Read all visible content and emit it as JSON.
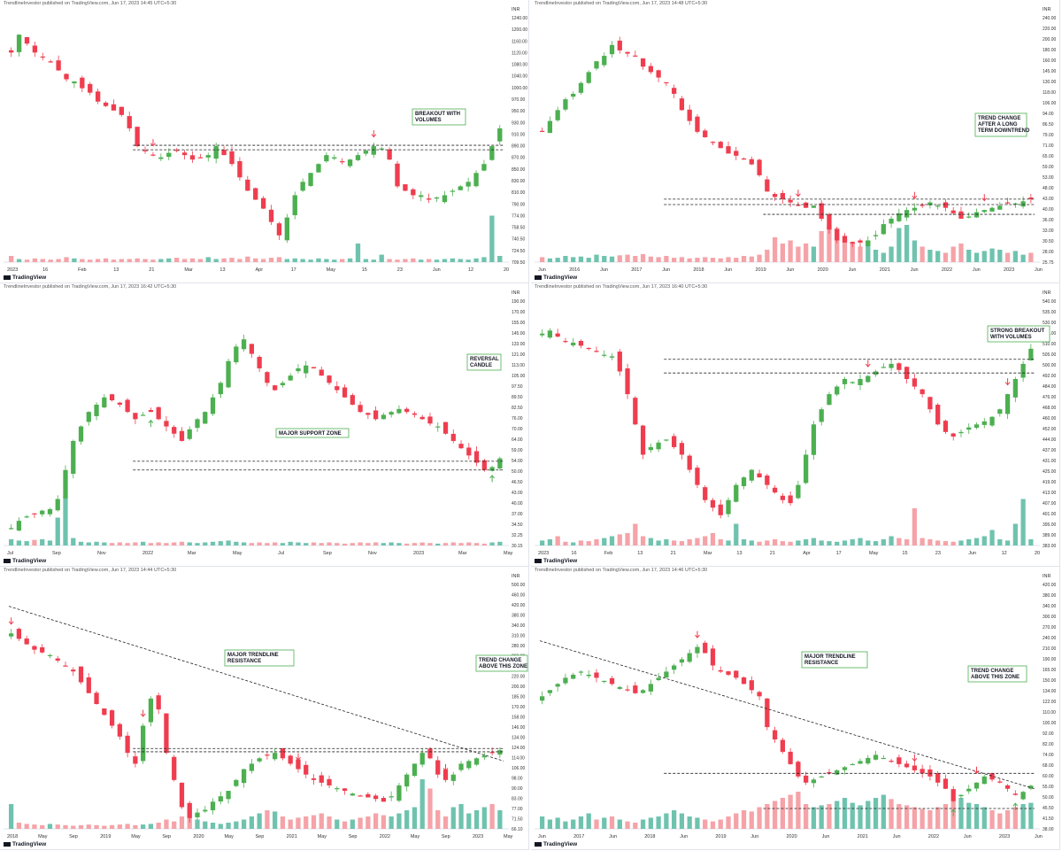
{
  "attribution": "TradingView",
  "colors": {
    "up": "#4caf50",
    "down": "#ef3d4f",
    "vol_up": "#6fc3ae",
    "vol_down": "#f5a3a8",
    "box_border": "#4caf50",
    "text": "#131722"
  },
  "chart_data": [
    {
      "type": "candlestick",
      "published": "TrendlineInvestor published on TradingView.com, Jun 17, 2023 14:45 UTC+5:30",
      "currency": "INR",
      "y_ticks": [
        "1240.00",
        "1200.00",
        "1160.00",
        "1120.00",
        "1080.00",
        "1040.00",
        "1000.00",
        "970.00",
        "950.00",
        "930.00",
        "910.00",
        "890.00",
        "870.00",
        "850.00",
        "830.00",
        "810.00",
        "790.00",
        "774.00",
        "758.50",
        "740.50",
        "724.50",
        "709.50"
      ],
      "x_ticks": [
        "2023",
        "16",
        "Feb",
        "13",
        "21",
        "Mar",
        "13",
        "Apr",
        "17",
        "May",
        "15",
        "23",
        "Jun",
        "12",
        "20"
      ],
      "ylim": [
        700,
        1260
      ],
      "trend": [
        1170,
        1210,
        1190,
        1170,
        1160,
        1150,
        1130,
        1110,
        1105,
        1090,
        1080,
        1060,
        1050,
        1040,
        1030,
        1000,
        960,
        950,
        940,
        935,
        945,
        950,
        940,
        930,
        935,
        940,
        960,
        940,
        920,
        890,
        860,
        840,
        820,
        790,
        760,
        800,
        850,
        880,
        900,
        920,
        940,
        935,
        925,
        930,
        940,
        950,
        960,
        955,
        930,
        870,
        860,
        850,
        850,
        840,
        845,
        850,
        860,
        870,
        880,
        900,
        920,
        960,
        1000
      ],
      "volume": [
        0.1,
        0.05,
        0.04,
        0.06,
        0.05,
        0.04,
        0.05,
        0.08,
        0.06,
        0.05,
        0.04,
        0.05,
        0.06,
        0.04,
        0.05,
        0.05,
        0.06,
        0.05,
        0.04,
        0.05,
        0.06,
        0.07,
        0.05,
        0.06,
        0.05,
        0.08,
        0.05,
        0.06,
        0.07,
        0.05,
        0.09,
        0.06,
        0.05,
        0.07,
        0.08,
        0.05,
        0.06,
        0.05,
        0.04,
        0.06,
        0.05,
        0.04,
        0.05,
        0.06,
        0.3,
        0.05,
        0.04,
        0.12,
        0.05,
        0.04,
        0.05,
        0.06,
        0.04,
        0.05,
        0.04,
        0.05,
        0.06,
        0.05,
        0.04,
        0.06,
        0.08,
        0.75,
        0.1
      ],
      "resistance": [
        962,
        952
      ],
      "annotations": [
        {
          "text": "BREAKOUT WITH VOLUMES"
        }
      ],
      "arrows_down": [
        18,
        46
      ],
      "arrows_up": []
    },
    {
      "type": "candlestick",
      "published": "TrendlineInvestor published on TradingView.com, Jun 17, 2023 14:48 UTC+5:30",
      "currency": "INR",
      "y_ticks": [
        "240.00",
        "220.00",
        "200.00",
        "180.00",
        "160.00",
        "145.00",
        "130.00",
        "118.00",
        "106.00",
        "94.00",
        "86.50",
        "79.00",
        "71.00",
        "65.00",
        "59.00",
        "53.00",
        "48.00",
        "43.00",
        "40.00",
        "36.00",
        "33.00",
        "30.50",
        "28.00",
        "25.75"
      ],
      "x_ticks": [
        "Jun",
        "2016",
        "Jun",
        "2017",
        "Jun",
        "2018",
        "Jun",
        "2019",
        "Jun",
        "2020",
        "Jun",
        "2021",
        "Jun",
        "2022",
        "Jun",
        "2023",
        "Jun"
      ],
      "ylim": [
        20,
        250
      ],
      "trend": [
        140,
        150,
        160,
        170,
        175,
        185,
        195,
        205,
        210,
        220,
        215,
        212,
        210,
        200,
        195,
        190,
        185,
        175,
        160,
        150,
        140,
        135,
        130,
        125,
        120,
        118,
        115,
        110,
        100,
        85,
        80,
        78,
        75,
        72,
        70,
        72,
        60,
        50,
        40,
        38,
        37,
        38,
        40,
        45,
        55,
        60,
        65,
        68,
        70,
        72,
        75,
        72,
        70,
        65,
        60,
        62,
        66,
        68,
        70,
        72,
        75,
        74,
        76,
        78
      ],
      "volume": [
        0.08,
        0.06,
        0.07,
        0.1,
        0.08,
        0.09,
        0.07,
        0.12,
        0.1,
        0.09,
        0.11,
        0.12,
        0.1,
        0.13,
        0.09,
        0.08,
        0.1,
        0.07,
        0.08,
        0.06,
        0.07,
        0.08,
        0.07,
        0.06,
        0.08,
        0.07,
        0.1,
        0.09,
        0.12,
        0.2,
        0.4,
        0.3,
        0.35,
        0.25,
        0.3,
        0.25,
        0.5,
        0.6,
        0.55,
        0.4,
        0.3,
        0.25,
        0.35,
        0.2,
        0.15,
        0.25,
        0.55,
        0.6,
        0.35,
        0.25,
        0.2,
        0.18,
        0.15,
        0.25,
        0.3,
        0.2,
        0.15,
        0.18,
        0.22,
        0.2,
        0.15,
        0.18,
        0.12,
        0.15
      ],
      "resistance": [
        78,
        73
      ],
      "support": [
        64
      ],
      "annotations": [
        {
          "text": "TREND CHANGE AFTER A LONG TERM DOWNTREND"
        }
      ],
      "arrows_down": [
        33,
        48,
        57
      ],
      "arrows_up": []
    },
    {
      "type": "candlestick",
      "published": "TrendlineInvestor published on TradingView.com, Jun 17, 2023 16:42 UTC+5:30",
      "currency": "INR",
      "y_ticks": [
        "190.00",
        "170.00",
        "155.00",
        "145.00",
        "133.00",
        "121.00",
        "113.00",
        "105.00",
        "97.50",
        "89.50",
        "82.50",
        "76.00",
        "70.00",
        "64.00",
        "59.00",
        "54.00",
        "50.00",
        "46.50",
        "43.00",
        "40.00",
        "37.00",
        "34.50",
        "32.25",
        "30.15"
      ],
      "x_ticks": [
        "Jul",
        "Sep",
        "Nov",
        "2022",
        "Mar",
        "May",
        "Jul",
        "Sep",
        "Nov",
        "2023",
        "Mar",
        "May"
      ],
      "ylim": [
        28,
        200
      ],
      "trend": [
        40,
        45,
        48,
        50,
        52,
        53,
        60,
        80,
        100,
        110,
        120,
        125,
        130,
        128,
        125,
        120,
        115,
        118,
        120,
        115,
        110,
        105,
        100,
        108,
        115,
        120,
        130,
        140,
        155,
        165,
        170,
        160,
        150,
        140,
        135,
        140,
        145,
        150,
        152,
        150,
        145,
        140,
        135,
        130,
        125,
        120,
        118,
        115,
        118,
        120,
        122,
        120,
        118,
        115,
        112,
        110,
        105,
        100,
        95,
        90,
        85,
        80,
        82,
        88
      ],
      "volume": [
        0.1,
        0.08,
        0.07,
        0.09,
        0.1,
        0.08,
        0.45,
        0.8,
        0.12,
        0.06,
        0.05,
        0.06,
        0.05,
        0.04,
        0.05,
        0.04,
        0.05,
        0.06,
        0.04,
        0.05,
        0.04,
        0.05,
        0.06,
        0.05,
        0.04,
        0.05,
        0.06,
        0.07,
        0.08,
        0.06,
        0.05,
        0.04,
        0.05,
        0.04,
        0.05,
        0.04,
        0.06,
        0.05,
        0.04,
        0.05,
        0.04,
        0.05,
        0.04,
        0.03,
        0.04,
        0.05,
        0.04,
        0.05,
        0.04,
        0.05,
        0.04,
        0.03,
        0.04,
        0.05,
        0.04,
        0.03,
        0.04,
        0.05,
        0.04,
        0.05,
        0.04,
        0.03,
        0.05,
        0.06
      ],
      "resistance": [
        86,
        80
      ],
      "annotations": [
        {
          "text": "REVERSAL CANDLE"
        },
        {
          "text": "MAJOR SUPPORT ZONE"
        }
      ],
      "arrows_down": [],
      "arrows_up": [
        8,
        18,
        27,
        62
      ]
    },
    {
      "type": "candlestick",
      "published": "TrendlineInvestor published on TradingView.com, Jun 17, 2023 16:40 UTC+5:30",
      "currency": "INR",
      "y_ticks": [
        "540.00",
        "535.00",
        "530.00",
        "520.00",
        "510.00",
        "505.00",
        "500.00",
        "492.00",
        "484.00",
        "476.00",
        "468.00",
        "460.00",
        "452.00",
        "444.00",
        "437.00",
        "431.00",
        "425.00",
        "419.00",
        "413.00",
        "407.00",
        "401.00",
        "395.00",
        "389.00",
        "383.00"
      ],
      "x_ticks": [
        "2023",
        "16",
        "Feb",
        "13",
        "21",
        "Mar",
        "13",
        "21",
        "Apr",
        "17",
        "May",
        "15",
        "23",
        "Jun",
        "12",
        "20"
      ],
      "ylim": [
        380,
        545
      ],
      "trend": [
        520,
        522,
        518,
        515,
        514,
        512,
        510,
        508,
        506,
        505,
        495,
        480,
        460,
        440,
        445,
        448,
        450,
        445,
        440,
        430,
        420,
        410,
        405,
        400,
        410,
        420,
        425,
        430,
        425,
        420,
        415,
        410,
        408,
        420,
        440,
        460,
        470,
        480,
        485,
        490,
        488,
        490,
        492,
        495,
        498,
        500,
        496,
        490,
        485,
        480,
        470,
        460,
        455,
        452,
        455,
        458,
        460,
        462,
        465,
        470,
        480,
        490,
        500,
        510
      ],
      "volume": [
        0.08,
        0.1,
        0.15,
        0.06,
        0.05,
        0.08,
        0.07,
        0.1,
        0.12,
        0.15,
        0.18,
        0.2,
        0.35,
        0.15,
        0.12,
        0.08,
        0.1,
        0.08,
        0.07,
        0.1,
        0.12,
        0.15,
        0.2,
        0.1,
        0.08,
        0.35,
        0.1,
        0.08,
        0.06,
        0.08,
        0.1,
        0.07,
        0.06,
        0.08,
        0.1,
        0.12,
        0.08,
        0.07,
        0.06,
        0.08,
        0.1,
        0.12,
        0.08,
        0.07,
        0.1,
        0.15,
        0.12,
        0.1,
        0.6,
        0.12,
        0.1,
        0.08,
        0.07,
        0.06,
        0.08,
        0.1,
        0.12,
        0.15,
        0.25,
        0.1,
        0.08,
        0.35,
        0.75,
        0.1
      ],
      "resistance": [
        503,
        494
      ],
      "annotations": [
        {
          "text": "STRONG BREAKOUT WITH VOLUMES"
        }
      ],
      "arrows_down": [
        10,
        42,
        60
      ],
      "arrows_up": []
    },
    {
      "type": "candlestick",
      "published": "TrendlineInvestor published on TradingView.com, Jun 17, 2023 14:44 UTC+5:30",
      "currency": "INR",
      "y_ticks": [
        "500.00",
        "460.00",
        "420.00",
        "380.00",
        "340.00",
        "310.00",
        "280.00",
        "260.00",
        "240.00",
        "220.00",
        "200.00",
        "185.00",
        "170.00",
        "158.00",
        "146.00",
        "134.00",
        "124.00",
        "114.00",
        "106.00",
        "98.00",
        "90.00",
        "83.00",
        "77.00",
        "71.50",
        "66.10"
      ],
      "x_ticks": [
        "2018",
        "May",
        "Sep",
        "2019",
        "May",
        "Sep",
        "2020",
        "May",
        "Sep",
        "2021",
        "May",
        "Sep",
        "2022",
        "May",
        "Sep",
        "2023",
        "May"
      ],
      "ylim": [
        60,
        520
      ],
      "trend": [
        420,
        410,
        400,
        390,
        385,
        380,
        370,
        360,
        350,
        330,
        310,
        290,
        270,
        250,
        230,
        200,
        180,
        250,
        300,
        280,
        200,
        150,
        100,
        80,
        90,
        95,
        110,
        120,
        130,
        150,
        170,
        180,
        190,
        195,
        200,
        190,
        180,
        170,
        160,
        150,
        145,
        140,
        135,
        130,
        125,
        120,
        118,
        115,
        110,
        120,
        140,
        160,
        180,
        200,
        190,
        160,
        150,
        160,
        180,
        185,
        190,
        195,
        200,
        205
      ],
      "volume": [
        0.4,
        0.1,
        0.08,
        0.07,
        0.06,
        0.08,
        0.07,
        0.06,
        0.05,
        0.06,
        0.07,
        0.06,
        0.05,
        0.06,
        0.07,
        0.08,
        0.06,
        0.07,
        0.08,
        0.1,
        0.15,
        0.12,
        0.2,
        0.35,
        0.15,
        0.12,
        0.1,
        0.08,
        0.1,
        0.12,
        0.15,
        0.2,
        0.25,
        0.3,
        0.28,
        0.2,
        0.15,
        0.18,
        0.2,
        0.22,
        0.25,
        0.2,
        0.15,
        0.12,
        0.15,
        0.18,
        0.2,
        0.25,
        0.22,
        0.2,
        0.25,
        0.3,
        0.35,
        0.8,
        0.65,
        0.3,
        0.2,
        0.35,
        0.4,
        0.25,
        0.3,
        0.35,
        0.4,
        0.3
      ],
      "resistance": [
        208,
        202
      ],
      "trendline": [
        470,
        185
      ],
      "annotations": [
        {
          "text": "MAJOR TRENDLINE RESISTANCE"
        },
        {
          "text": "TREND CHANGE ABOVE THIS ZONE"
        }
      ],
      "arrows_down": [
        0,
        17,
        37,
        56
      ],
      "arrows_up": []
    },
    {
      "type": "candlestick",
      "published": "TrendlineInvestor published on TradingView.com, Jun 17, 2023 14:46 UTC+5:30",
      "currency": "INR",
      "y_ticks": [
        "420.00",
        "380.00",
        "340.00",
        "300.00",
        "270.00",
        "240.00",
        "210.00",
        "190.00",
        "165.00",
        "150.00",
        "134.00",
        "122.00",
        "110.00",
        "100.00",
        "92.00",
        "82.00",
        "74.00",
        "68.00",
        "60.00",
        "55.00",
        "50.00",
        "45.50",
        "41.50",
        "38.00"
      ],
      "x_ticks": [
        "Jun",
        "2017",
        "Jun",
        "2018",
        "Jun",
        "2019",
        "Jun",
        "2020",
        "Jun",
        "2021",
        "Jun",
        "2022",
        "Jun",
        "2023",
        "Jun"
      ],
      "ylim": [
        35,
        440
      ],
      "trend": [
        250,
        260,
        270,
        280,
        285,
        290,
        285,
        280,
        275,
        270,
        265,
        260,
        255,
        260,
        270,
        280,
        290,
        300,
        310,
        320,
        330,
        320,
        300,
        290,
        285,
        280,
        270,
        260,
        250,
        200,
        180,
        160,
        140,
        120,
        110,
        115,
        120,
        125,
        130,
        135,
        140,
        145,
        150,
        155,
        150,
        145,
        140,
        135,
        130,
        125,
        120,
        110,
        100,
        80,
        90,
        100,
        110,
        120,
        115,
        110,
        100,
        90,
        95,
        105
      ],
      "volume": [
        0.2,
        0.15,
        0.18,
        0.12,
        0.15,
        0.2,
        0.25,
        0.15,
        0.18,
        0.2,
        0.15,
        0.12,
        0.1,
        0.15,
        0.18,
        0.2,
        0.25,
        0.3,
        0.25,
        0.2,
        0.18,
        0.15,
        0.12,
        0.15,
        0.2,
        0.25,
        0.3,
        0.28,
        0.35,
        0.4,
        0.45,
        0.5,
        0.55,
        0.6,
        0.4,
        0.35,
        0.38,
        0.4,
        0.45,
        0.5,
        0.42,
        0.38,
        0.45,
        0.5,
        0.55,
        0.48,
        0.4,
        0.38,
        0.35,
        0.32,
        0.3,
        0.35,
        0.4,
        0.45,
        0.5,
        0.42,
        0.4,
        0.35,
        0.3,
        0.25,
        0.3,
        0.35,
        0.4,
        0.42
      ],
      "support": [
        68
      ],
      "resistance": [
        125
      ],
      "trendline": [
        340,
        100
      ],
      "annotations": [
        {
          "text": "MAJOR TRENDLINE RESISTANCE"
        },
        {
          "text": "TREND CHANGE ABOVE THIS ZONE"
        }
      ],
      "arrows_down": [
        20,
        33,
        48,
        56
      ],
      "arrows_up": [
        53,
        61
      ]
    }
  ],
  "panels_text": {
    "p1": {
      "label_box": "BREAKOUT WITH\nVOLUMES"
    },
    "p2": {
      "label_box": "TREND CHANGE\nAFTER A LONG\nTERM DOWNTREND"
    },
    "p3": {
      "label_box1": "REVERSAL\nCANDLE",
      "label_box2": "MAJOR SUPPORT ZONE"
    },
    "p4": {
      "label_box": "STRONG BREAKOUT\nWITH VOLUMES"
    },
    "p5": {
      "label_box1": "MAJOR TRENDLINE\nRESISTANCE",
      "label_box2": "TREND CHANGE\nABOVE THIS ZONE"
    },
    "p6": {
      "label_box1": "MAJOR TRENDLINE\nRESISTANCE",
      "label_box2": "TREND CHANGE\nABOVE THIS ZONE"
    }
  }
}
